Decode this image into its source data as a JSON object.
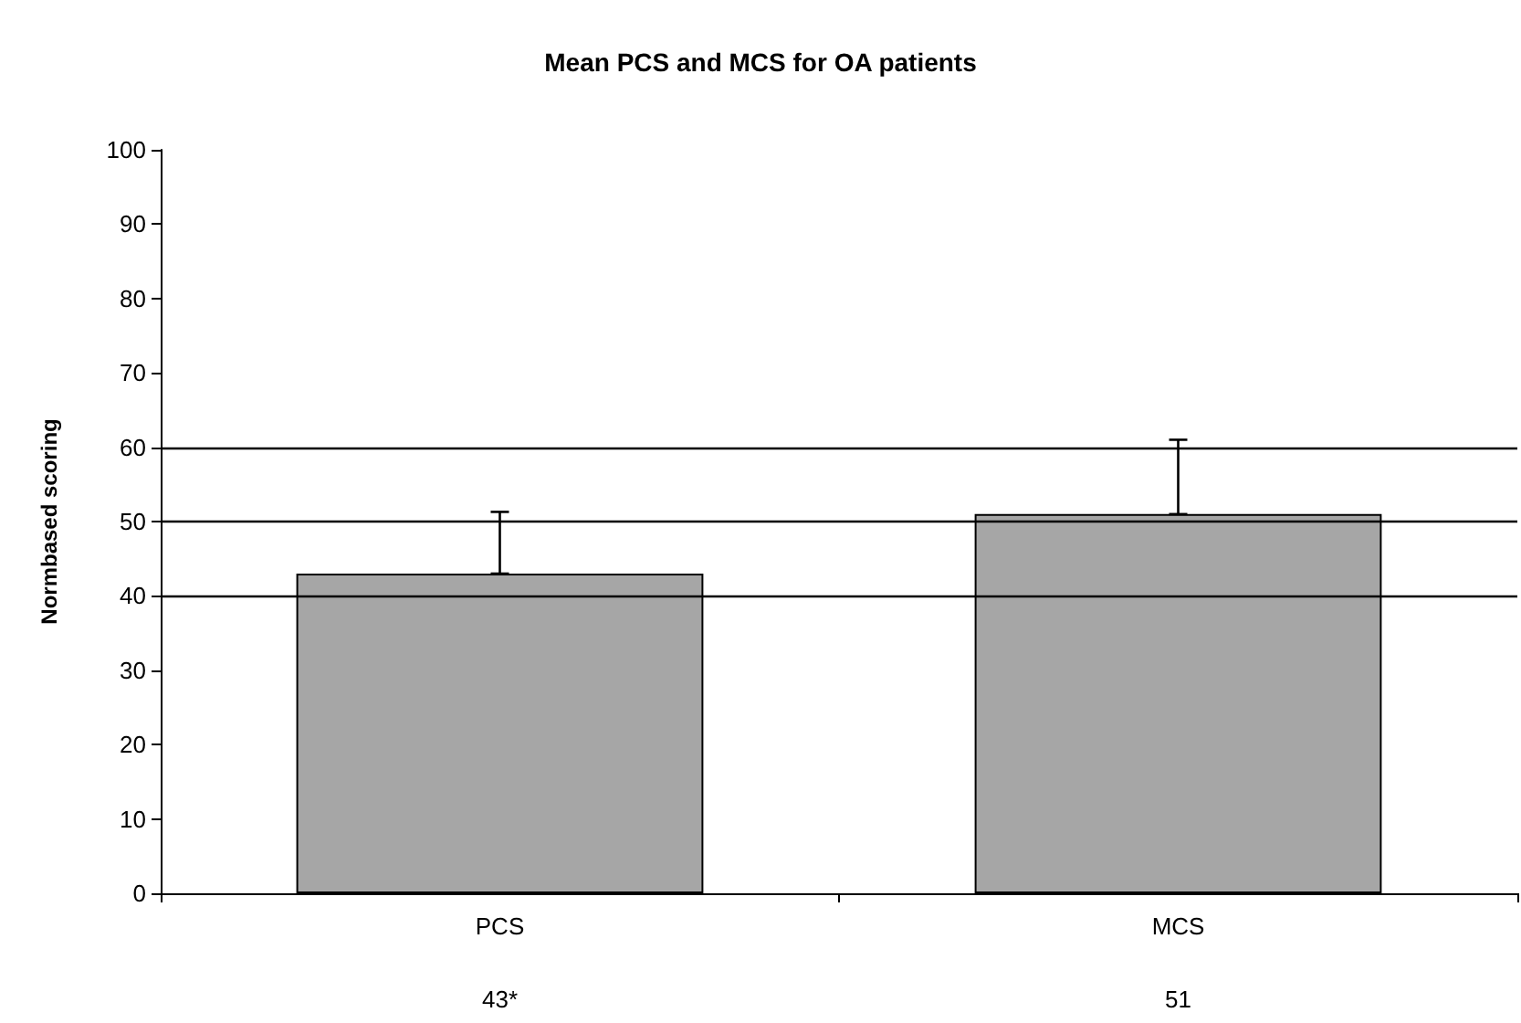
{
  "chart_data": {
    "type": "bar",
    "title": "Mean PCS and MCS for OA patients",
    "ylabel": "Normbased scoring",
    "categories": [
      "PCS",
      "MCS"
    ],
    "values": [
      43,
      51
    ],
    "color": "#a6a6a6",
    "value_labels": [
      "43*",
      "51"
    ],
    "errors": [
      [
        43,
        51.3
      ],
      [
        51,
        61
      ]
    ],
    "ylim": [
      0,
      100
    ],
    "yticks": [
      0,
      10,
      20,
      30,
      40,
      50,
      60,
      70,
      80,
      90,
      100
    ],
    "grid": false,
    "ref_lines": [
      {
        "axis": "y",
        "value": 40,
        "color": "#000000"
      },
      {
        "axis": "y",
        "value": 50,
        "color": "#000000"
      },
      {
        "axis": "y",
        "value": 60,
        "color": "#000000"
      }
    ]
  }
}
